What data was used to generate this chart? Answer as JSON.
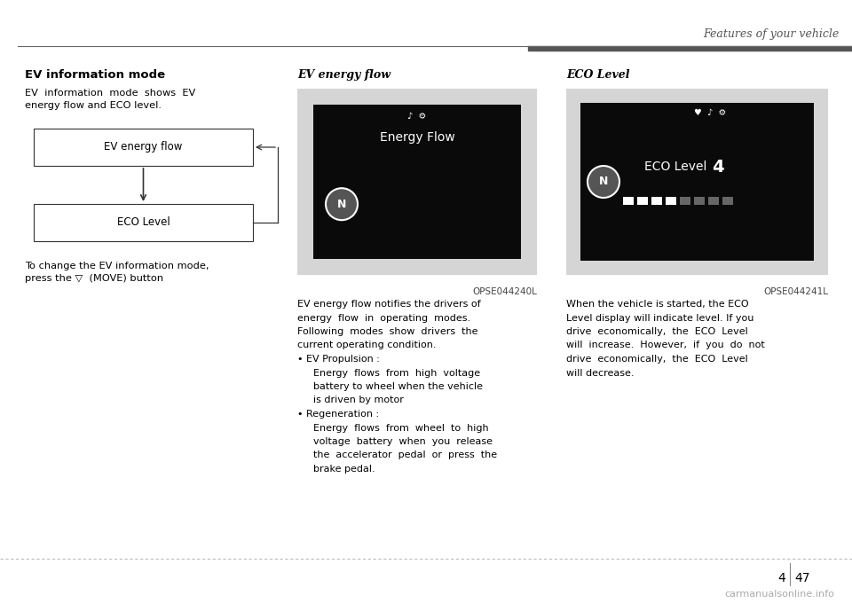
{
  "page_bg": "#ffffff",
  "header_title": "Features of your vehicle",
  "header_line_color": "#555555",
  "header_bar_color": "#555555",
  "section_title": "EV information mode",
  "section_body1": "EV  information  mode  shows  EV\nenergy flow and ECO level.",
  "box1_label": "EV energy flow",
  "box2_label": "ECO Level",
  "section_body2": "To change the EV information mode,\npress the ▽  (MOVE) button",
  "col2_title": "EV energy flow",
  "col2_caption": "OPSE044240L",
  "col3_title": "ECO Level",
  "col3_caption": "OPSE044241L",
  "footer_line_color": "#aaaaaa",
  "page_num_left": "4",
  "page_num_right": "47",
  "watermark": "carmanualsonline.info"
}
